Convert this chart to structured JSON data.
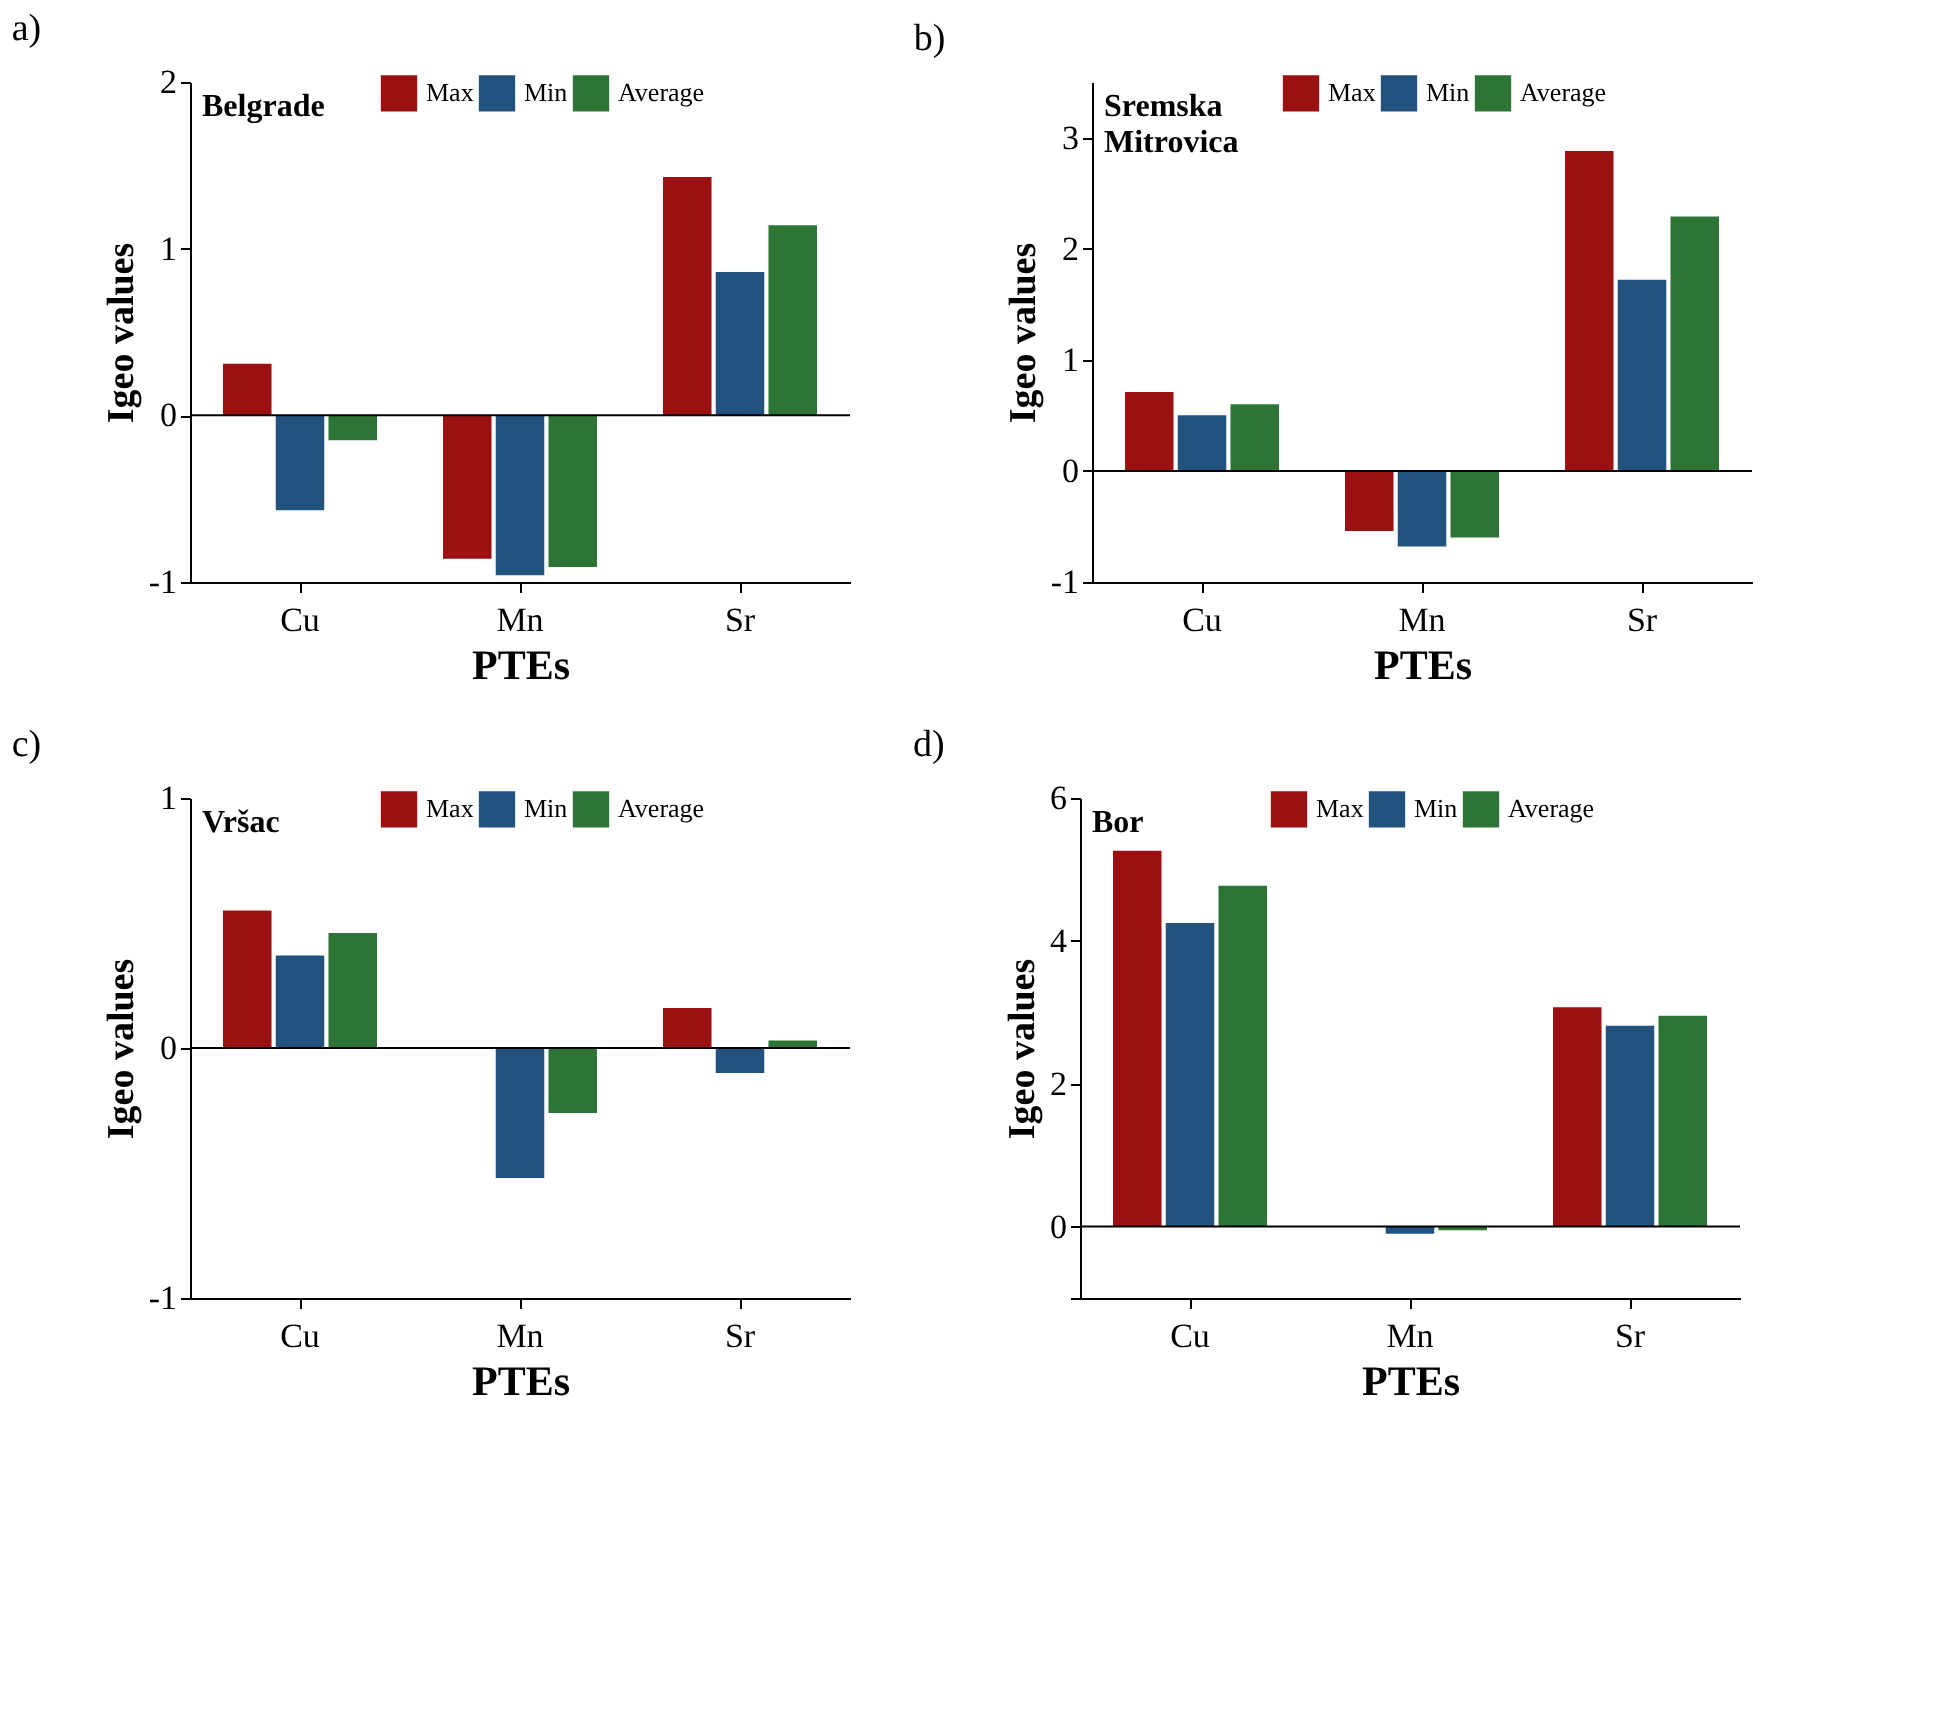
{
  "chart_data": [
    {
      "type": "bar",
      "title": "a)",
      "annotations": [
        "Belgrade"
      ],
      "xlabel": "PTEs",
      "ylabel": "Igeo values",
      "categories": [
        "Cu",
        "Mn",
        "Sr"
      ],
      "ylim": [
        -1,
        2
      ],
      "yticks": [
        -1,
        0,
        1,
        2
      ],
      "legend": "top right",
      "grid": false,
      "ref_lines": [
        {
          "axis": "y",
          "value": 0,
          "color": "#000000"
        }
      ],
      "series": [
        {
          "name": "Max",
          "color": "#9b1010",
          "values": [
            0.31,
            -0.86,
            1.43
          ]
        },
        {
          "name": "Min",
          "color": "#22527e",
          "values": [
            -0.57,
            -0.96,
            0.86
          ]
        },
        {
          "name": "Average",
          "color": "#2e7434",
          "values": [
            -0.15,
            -0.91,
            1.14
          ]
        }
      ]
    },
    {
      "type": "bar",
      "title": "b)",
      "annotations": [
        "Sremska Mitrovica"
      ],
      "xlabel": "PTEs",
      "ylabel": "Igeo values",
      "categories": [
        "Cu",
        "Mn",
        "Sr"
      ],
      "ylim": [
        -1,
        3.5
      ],
      "yticks": [
        -1,
        0,
        1,
        2,
        3
      ],
      "legend": "top right",
      "grid": false,
      "ref_lines": [
        {
          "axis": "y",
          "value": 0,
          "color": "#000000"
        }
      ],
      "series": [
        {
          "name": "Max",
          "color": "#9b1010",
          "values": [
            0.71,
            -0.54,
            2.88
          ]
        },
        {
          "name": "Min",
          "color": "#22527e",
          "values": [
            0.5,
            -0.68,
            1.72
          ]
        },
        {
          "name": "Average",
          "color": "#2e7434",
          "values": [
            0.6,
            -0.6,
            2.29
          ]
        }
      ]
    },
    {
      "type": "bar",
      "title": "c)",
      "annotations": [
        "Vršac"
      ],
      "xlabel": "PTEs",
      "ylabel": "Igeo values",
      "categories": [
        "Cu",
        "Mn",
        "Sr"
      ],
      "ylim": [
        -1,
        1
      ],
      "yticks": [
        -1,
        0,
        1
      ],
      "legend": "top right",
      "grid": false,
      "ref_lines": [
        {
          "axis": "y",
          "value": 0,
          "color": "#000000"
        }
      ],
      "series": [
        {
          "name": "Max",
          "color": "#9b1010",
          "values": [
            0.55,
            0.0,
            0.16
          ]
        },
        {
          "name": "Min",
          "color": "#22527e",
          "values": [
            0.37,
            -0.52,
            -0.1
          ]
        },
        {
          "name": "Average",
          "color": "#2e7434",
          "values": [
            0.46,
            -0.26,
            0.03
          ]
        }
      ]
    },
    {
      "type": "bar",
      "title": "d)",
      "annotations": [
        "Bor"
      ],
      "xlabel": "PTEs",
      "ylabel": "Igeo values",
      "categories": [
        "Cu",
        "Mn",
        "Sr"
      ],
      "ylim": [
        -1,
        6
      ],
      "yticks": [
        {
          "value": -1,
          "label": null
        },
        0,
        2,
        4,
        6
      ],
      "legend": "top right",
      "grid": false,
      "ref_lines": [
        {
          "axis": "y",
          "value": 0,
          "color": "#000000"
        }
      ],
      "series": [
        {
          "name": "Max",
          "color": "#9b1010",
          "values": [
            5.26,
            0.0,
            3.07
          ]
        },
        {
          "name": "Min",
          "color": "#22527e",
          "values": [
            4.25,
            -0.1,
            2.81
          ]
        },
        {
          "name": "Average",
          "color": "#2e7434",
          "values": [
            4.77,
            -0.05,
            2.95
          ]
        }
      ]
    }
  ]
}
